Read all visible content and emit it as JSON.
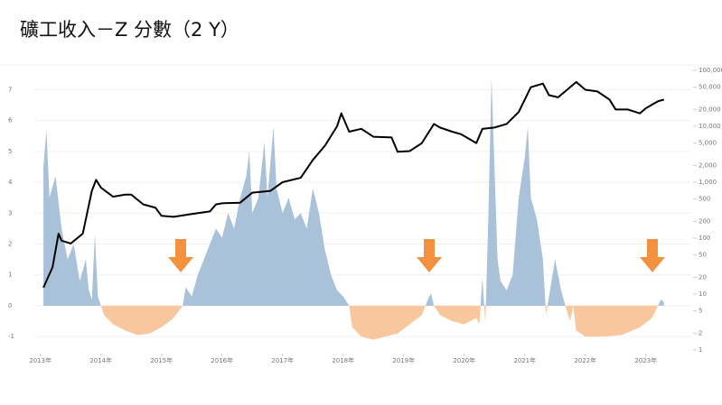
{
  "chart_data": {
    "type": "area-line",
    "title": "礦工收入－Z 分數（2 Y）",
    "grid": true,
    "xlim": [
      2012.9,
      2023.75
    ],
    "xticks": [
      {
        "value": 2013,
        "label": "2013年"
      },
      {
        "value": 2014,
        "label": "2014年"
      },
      {
        "value": 2015,
        "label": "2015年"
      },
      {
        "value": 2016,
        "label": "2016年"
      },
      {
        "value": 2017,
        "label": "2017年"
      },
      {
        "value": 2018,
        "label": "2018年"
      },
      {
        "value": 2019,
        "label": "2019年"
      },
      {
        "value": 2020,
        "label": "2020年"
      },
      {
        "value": 2021,
        "label": "2021年"
      },
      {
        "value": 2022,
        "label": "2022年"
      },
      {
        "value": 2023,
        "label": "2023年"
      }
    ],
    "ylim": [
      -1.55,
      7.8
    ],
    "yticks": [
      -1,
      0,
      1,
      2,
      3,
      4,
      5,
      6,
      7
    ],
    "y2lim": [
      0.86,
      125000
    ],
    "y2log": true,
    "y2ticks": [
      1,
      2,
      5,
      10,
      20,
      50,
      100,
      200,
      500,
      {
        "value": 1000,
        "label": "1,000"
      },
      {
        "value": 2000,
        "label": "2,000"
      },
      {
        "value": 5000,
        "label": "5,000"
      },
      {
        "value": 10000,
        "label": "10,000"
      },
      {
        "value": 20000,
        "label": "20,000"
      },
      {
        "value": 50000,
        "label": "50,000"
      },
      {
        "value": 100000,
        "label": "100,000"
      }
    ],
    "series": [
      {
        "kind": "area",
        "color": "#a9c1d9",
        "negative_color": "#f8c79d",
        "x": [
          2013.05,
          2013.1,
          2013.15,
          2013.25,
          2013.35,
          2013.45,
          2013.55,
          2013.65,
          2013.75,
          2013.8,
          2013.85,
          2013.9,
          2013.95,
          2014.0,
          2014.05,
          2014.2,
          2014.4,
          2014.6,
          2014.8,
          2015.0,
          2015.2,
          2015.35,
          2015.4,
          2015.5,
          2015.6,
          2015.7,
          2015.8,
          2015.9,
          2016.0,
          2016.1,
          2016.2,
          2016.3,
          2016.4,
          2016.45,
          2016.5,
          2016.6,
          2016.7,
          2016.75,
          2016.85,
          2016.9,
          2017.0,
          2017.1,
          2017.2,
          2017.3,
          2017.4,
          2017.5,
          2017.6,
          2017.7,
          2017.8,
          2017.9,
          2018.0,
          2018.1,
          2018.15,
          2018.3,
          2018.5,
          2018.7,
          2018.9,
          2019.1,
          2019.3,
          2019.4,
          2019.45,
          2019.5,
          2019.6,
          2019.8,
          2020.0,
          2020.2,
          2020.25,
          2020.3,
          2020.35,
          2020.4,
          2020.45,
          2020.5,
          2020.55,
          2020.6,
          2020.7,
          2020.8,
          2020.9,
          2021.0,
          2021.05,
          2021.1,
          2021.2,
          2021.3,
          2021.35,
          2021.5,
          2021.6,
          2021.7,
          2021.75,
          2021.8,
          2021.85,
          2022.0,
          2022.3,
          2022.6,
          2022.9,
          2023.1,
          2023.2,
          2023.25,
          2023.3
        ],
        "values": [
          4.5,
          5.7,
          3.5,
          4.2,
          2.5,
          1.5,
          2.0,
          0.8,
          1.5,
          0.5,
          0.2,
          2.3,
          0.3,
          0.0,
          -0.3,
          -0.6,
          -0.8,
          -0.95,
          -0.9,
          -0.7,
          -0.4,
          0.0,
          0.6,
          0.3,
          1.0,
          1.5,
          2.0,
          2.5,
          2.2,
          3.0,
          2.5,
          3.5,
          4.2,
          5.0,
          3.0,
          3.5,
          5.3,
          3.5,
          5.8,
          3.8,
          3.0,
          3.5,
          2.8,
          3.0,
          2.5,
          3.8,
          3.0,
          1.8,
          1.0,
          0.5,
          0.3,
          0.0,
          -0.7,
          -1.0,
          -1.1,
          -1.0,
          -0.9,
          -0.6,
          -0.3,
          0.2,
          0.4,
          0.0,
          -0.3,
          -0.5,
          -0.6,
          -0.4,
          -0.6,
          0.9,
          -0.6,
          3.0,
          7.4,
          4.5,
          1.5,
          0.8,
          0.5,
          1.0,
          3.5,
          4.8,
          5.8,
          3.5,
          2.8,
          1.5,
          -0.3,
          1.5,
          0.5,
          -0.2,
          -0.5,
          0.0,
          -0.8,
          -1.0,
          -1.0,
          -0.95,
          -0.7,
          -0.4,
          0.0,
          0.2,
          0.1
        ]
      },
      {
        "kind": "line",
        "axis": "y2",
        "color": "#000000",
        "x": [
          2013.05,
          2013.2,
          2013.3,
          2013.35,
          2013.5,
          2013.7,
          2013.85,
          2013.92,
          2014.0,
          2014.2,
          2014.4,
          2014.5,
          2014.7,
          2014.9,
          2015.0,
          2015.2,
          2015.5,
          2015.8,
          2015.9,
          2016.0,
          2016.3,
          2016.5,
          2016.8,
          2017.0,
          2017.3,
          2017.5,
          2017.7,
          2017.9,
          2017.97,
          2018.1,
          2018.3,
          2018.5,
          2018.8,
          2018.9,
          2019.1,
          2019.3,
          2019.5,
          2019.6,
          2019.8,
          2019.95,
          2020.2,
          2020.3,
          2020.5,
          2020.7,
          2020.9,
          2021.0,
          2021.1,
          2021.3,
          2021.4,
          2021.55,
          2021.7,
          2021.85,
          2022.0,
          2022.2,
          2022.4,
          2022.5,
          2022.7,
          2022.9,
          2023.0,
          2023.2,
          2023.3
        ],
        "values": [
          13,
          30,
          120,
          90,
          80,
          120,
          700,
          1100,
          800,
          550,
          600,
          600,
          400,
          350,
          250,
          240,
          270,
          300,
          400,
          420,
          430,
          650,
          700,
          1000,
          1200,
          2500,
          4500,
          10000,
          17000,
          8000,
          9000,
          6500,
          6300,
          3500,
          3600,
          5000,
          11000,
          9500,
          8000,
          7200,
          5000,
          9000,
          9500,
          11000,
          18000,
          30000,
          50000,
          58000,
          36000,
          33000,
          45000,
          62000,
          45000,
          42000,
          30000,
          20000,
          20000,
          17000,
          21000,
          28000,
          30000
        ]
      }
    ]
  }
}
